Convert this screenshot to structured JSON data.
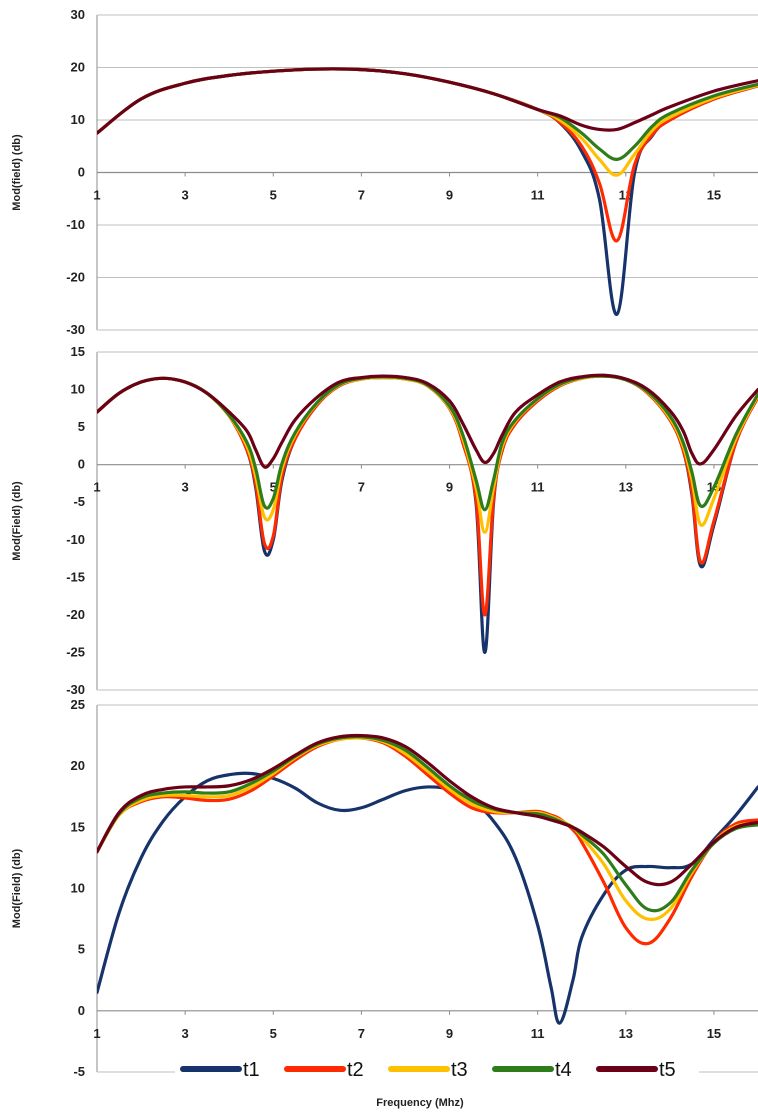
{
  "figure": {
    "xlabel": "Frequency (Mhz)"
  },
  "legend": [
    {
      "name": "t1",
      "color": "#17336B"
    },
    {
      "name": "t2",
      "color": "#FF2A00"
    },
    {
      "name": "t3",
      "color": "#FFC000"
    },
    {
      "name": "t4",
      "color": "#2E7D1A"
    },
    {
      "name": "t5",
      "color": "#6B0017"
    }
  ],
  "chart_data": [
    {
      "type": "line",
      "ylabel": "Mod(field) (db)",
      "xlim": [
        1,
        16
      ],
      "ylim": [
        -30,
        30
      ],
      "yticks": [
        30,
        20,
        10,
        0,
        -10,
        -20,
        -30
      ],
      "xticks": [
        1,
        3,
        5,
        7,
        9,
        11,
        13,
        15
      ],
      "grid": true,
      "x": [
        1,
        2,
        3,
        4,
        5,
        6,
        7,
        8,
        9,
        10,
        11,
        11.5,
        12,
        12.4,
        12.8,
        13.2,
        13.6,
        14,
        15,
        16
      ],
      "series": [
        {
          "name": "t1",
          "color": "#17336B",
          "values": [
            7.5,
            14,
            17,
            18.5,
            19.3,
            19.7,
            19.6,
            18.8,
            17.2,
            15,
            12,
            9.5,
            4,
            -5,
            -27,
            0,
            7,
            10,
            14,
            16.5
          ]
        },
        {
          "name": "t2",
          "color": "#FF2A00",
          "values": [
            7.5,
            14,
            17,
            18.5,
            19.3,
            19.7,
            19.6,
            18.8,
            17.2,
            15,
            12,
            9.6,
            5,
            -2,
            -13,
            1.5,
            7.2,
            10,
            14,
            16.5
          ]
        },
        {
          "name": "t3",
          "color": "#FFC000",
          "values": [
            7.5,
            14,
            17,
            18.5,
            19.3,
            19.7,
            19.6,
            18.8,
            17.2,
            15,
            12,
            10,
            6.5,
            2.5,
            -0.5,
            3.5,
            8,
            10.5,
            14.2,
            16.6
          ]
        },
        {
          "name": "t4",
          "color": "#2E7D1A",
          "values": [
            7.5,
            14,
            17,
            18.5,
            19.3,
            19.7,
            19.6,
            18.8,
            17.2,
            15,
            12,
            10.5,
            7.5,
            4.5,
            2.5,
            5,
            8.8,
            11.2,
            14.6,
            16.8
          ]
        },
        {
          "name": "t5",
          "color": "#6B0017",
          "values": [
            7.5,
            14,
            17,
            18.5,
            19.3,
            19.7,
            19.6,
            18.8,
            17.2,
            15,
            12,
            10.8,
            9,
            8.2,
            8.2,
            9.5,
            11,
            12.5,
            15.5,
            17.5
          ]
        }
      ]
    },
    {
      "type": "line",
      "ylabel": "Mod(Field) (db)",
      "xlim": [
        1,
        16
      ],
      "ylim": [
        -30,
        15
      ],
      "yticks": [
        15,
        10,
        5,
        0,
        -5,
        -10,
        -15,
        -20,
        -25,
        -30
      ],
      "xticks": [
        1,
        3,
        5,
        7,
        9,
        11,
        13,
        15
      ],
      "grid": false,
      "x": [
        1,
        1.5,
        2,
        2.5,
        3,
        3.5,
        4,
        4.4,
        4.6,
        4.8,
        5,
        5.2,
        5.5,
        6,
        6.5,
        7,
        7.5,
        8,
        8.5,
        9,
        9.3,
        9.6,
        9.8,
        10,
        10.2,
        10.5,
        11,
        11.5,
        12,
        12.5,
        13,
        13.5,
        14,
        14.3,
        14.5,
        14.7,
        15,
        15.5,
        16
      ],
      "series": [
        {
          "name": "t1",
          "color": "#17336B",
          "values": [
            7,
            9.5,
            11,
            11.5,
            11,
            9.5,
            6.5,
            2,
            -3,
            -11.5,
            -10,
            -2,
            3.5,
            8,
            10.5,
            11.4,
            11.6,
            11.4,
            10.5,
            7.5,
            3,
            -5,
            -25,
            -5,
            2,
            5.5,
            8.5,
            10.5,
            11.5,
            11.8,
            11.3,
            9.5,
            6,
            2,
            -4,
            -13.5,
            -8,
            3,
            9
          ]
        },
        {
          "name": "t2",
          "color": "#FF2A00",
          "values": [
            7,
            9.5,
            11,
            11.5,
            11,
            9.5,
            6.5,
            2,
            -2.5,
            -10.5,
            -9.5,
            -1.5,
            3.5,
            8,
            10.5,
            11.4,
            11.6,
            11.4,
            10.5,
            7.5,
            3,
            -4.5,
            -20,
            -4.5,
            2,
            5.5,
            8.5,
            10.5,
            11.5,
            11.8,
            11.3,
            9.5,
            6,
            2,
            -3.5,
            -13,
            -7.5,
            3,
            9
          ]
        },
        {
          "name": "t3",
          "color": "#FFC000",
          "values": [
            7,
            9.5,
            11,
            11.5,
            11,
            9.5,
            6.5,
            2.5,
            -1.5,
            -7,
            -6,
            -0.5,
            4,
            8.2,
            10.6,
            11.4,
            11.6,
            11.4,
            10.5,
            7.6,
            3.5,
            -3,
            -9,
            -3,
            2.5,
            5.8,
            8.7,
            10.6,
            11.5,
            11.8,
            11.3,
            9.6,
            6.2,
            2.5,
            -2,
            -8,
            -4.5,
            3.5,
            9.2
          ]
        },
        {
          "name": "t4",
          "color": "#2E7D1A",
          "values": [
            7,
            9.5,
            11,
            11.5,
            11,
            9.5,
            6.6,
            3,
            -0.5,
            -5.5,
            -4.5,
            0.2,
            4.3,
            8.3,
            10.7,
            11.5,
            11.7,
            11.5,
            10.6,
            7.8,
            4,
            -2,
            -6,
            -2,
            3,
            6,
            8.8,
            10.7,
            11.6,
            11.8,
            11.3,
            9.7,
            6.5,
            3,
            -1,
            -5.5,
            -3,
            4,
            9.4
          ]
        },
        {
          "name": "t5",
          "color": "#6B0017",
          "values": [
            7,
            9.5,
            11,
            11.5,
            11,
            9.5,
            7,
            4.5,
            2,
            -0.3,
            0.8,
            3,
            6,
            9,
            11,
            11.6,
            11.8,
            11.6,
            10.8,
            8.5,
            5.5,
            2,
            0.3,
            1.5,
            4,
            7,
            9.3,
            11,
            11.7,
            11.9,
            11.4,
            10,
            7.2,
            4.5,
            1.5,
            0.1,
            2,
            6.5,
            10
          ]
        }
      ]
    },
    {
      "type": "line",
      "ylabel": "Mod(Field) (db)",
      "xlim": [
        1,
        16
      ],
      "ylim": [
        -5,
        25
      ],
      "yticks": [
        25,
        20,
        15,
        10,
        5,
        0,
        -5
      ],
      "xticks": [
        1,
        3,
        5,
        7,
        9,
        11,
        13,
        15
      ],
      "grid": false,
      "x": [
        1,
        1.5,
        2,
        2.5,
        3,
        3.5,
        4,
        4.5,
        5,
        5.5,
        6,
        6.5,
        7,
        7.5,
        8,
        8.5,
        9,
        9.5,
        10,
        10.5,
        11,
        11.3,
        11.5,
        11.8,
        12,
        12.5,
        13,
        13.5,
        14,
        14.5,
        15,
        15.5,
        16
      ],
      "series": [
        {
          "name": "t1",
          "color": "#17336B",
          "values": [
            1.5,
            8,
            12.5,
            15.5,
            17.5,
            18.8,
            19.3,
            19.4,
            19,
            18.2,
            17,
            16.4,
            16.6,
            17.3,
            18,
            18.3,
            18.1,
            17.2,
            15.5,
            12.5,
            7,
            2,
            -1,
            2.5,
            6,
            9.5,
            11.5,
            11.8,
            11.7,
            12,
            14,
            16,
            18.3
          ]
        },
        {
          "name": "t2",
          "color": "#FF2A00",
          "values": [
            13,
            16,
            17.1,
            17.5,
            17.4,
            17.2,
            17.3,
            18,
            19.2,
            20.5,
            21.6,
            22.2,
            22.3,
            21.9,
            20.8,
            19.3,
            17.8,
            16.6,
            16.2,
            16.2,
            16.3,
            16,
            15.7,
            14.8,
            13.8,
            10.5,
            6.8,
            5.5,
            7.5,
            11,
            13.8,
            15.3,
            15.6
          ]
        },
        {
          "name": "t3",
          "color": "#FFC000",
          "values": [
            13,
            16,
            17.2,
            17.6,
            17.6,
            17.5,
            17.6,
            18.3,
            19.4,
            20.7,
            21.7,
            22.2,
            22.3,
            22,
            21,
            19.6,
            18.1,
            16.9,
            16.3,
            16.2,
            16.2,
            15.9,
            15.6,
            15,
            14.2,
            12,
            9,
            7.5,
            8.3,
            11.3,
            13.8,
            15.1,
            15.3
          ]
        },
        {
          "name": "t4",
          "color": "#2E7D1A",
          "values": [
            13,
            16.1,
            17.4,
            17.8,
            17.9,
            17.8,
            17.9,
            18.6,
            19.6,
            20.8,
            21.8,
            22.3,
            22.4,
            22.1,
            21.3,
            19.9,
            18.4,
            17.2,
            16.5,
            16.2,
            16.1,
            15.8,
            15.5,
            15,
            14.4,
            12.8,
            10.3,
            8.3,
            8.8,
            11.5,
            13.7,
            14.9,
            15.2
          ]
        },
        {
          "name": "t5",
          "color": "#6B0017",
          "values": [
            13,
            16.2,
            17.6,
            18.1,
            18.3,
            18.3,
            18.4,
            18.9,
            19.8,
            20.9,
            21.9,
            22.4,
            22.5,
            22.3,
            21.6,
            20.3,
            18.8,
            17.5,
            16.6,
            16.2,
            15.9,
            15.6,
            15.4,
            15,
            14.6,
            13.4,
            11.8,
            10.5,
            10.5,
            12,
            13.8,
            15,
            15.4
          ]
        }
      ]
    }
  ]
}
